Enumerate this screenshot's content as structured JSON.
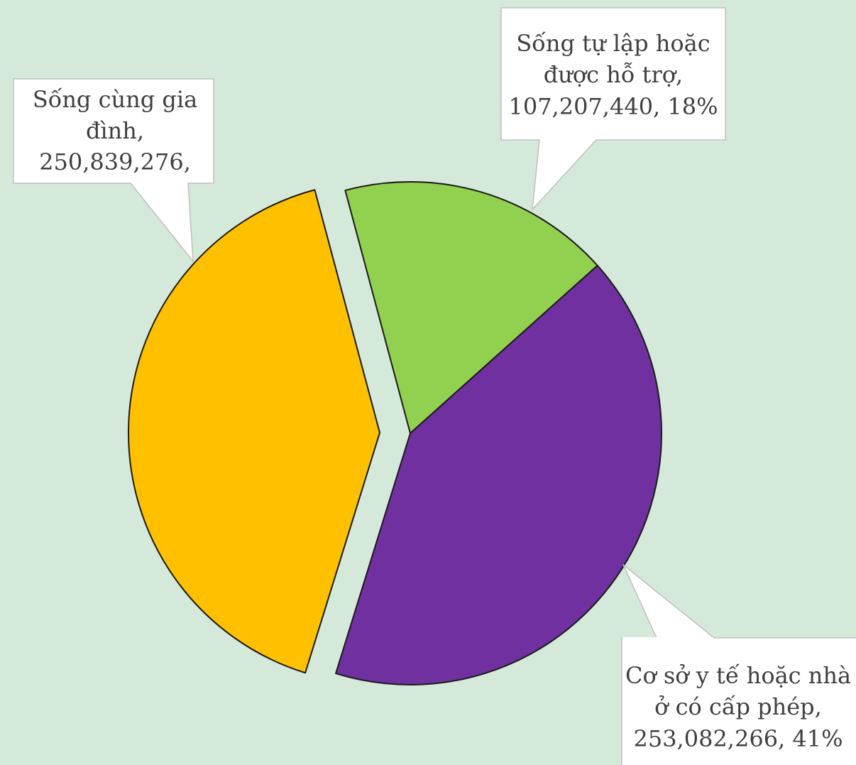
{
  "chart_data": {
    "type": "pie",
    "title": "",
    "slices": [
      {
        "label": "Sống tự lập hoặc được hỗ trợ",
        "value": 107207440,
        "percent": 18,
        "color": "#92d050",
        "exploded": false,
        "callout_lines": [
          "Sống tự lập hoặc",
          "được hỗ trợ,",
          "107,207,440, 18%"
        ]
      },
      {
        "label": "Cơ sở y tế hoặc nhà ở có cấp phép",
        "value": 253082266,
        "percent": 41,
        "color": "#7030a0",
        "exploded": false,
        "callout_lines": [
          "Cơ sở y tế hoặc nhà",
          "ở có cấp phép,",
          "253,082,266, 41%"
        ]
      },
      {
        "label": "Sống cùng gia đình",
        "value": 250839276,
        "percent": 41,
        "color": "#ffc000",
        "exploded": true,
        "callout_lines": [
          "Sống cùng gia",
          "đình,",
          "250,839,276,"
        ]
      }
    ],
    "start_angle_deg": -15,
    "legend": "none"
  }
}
